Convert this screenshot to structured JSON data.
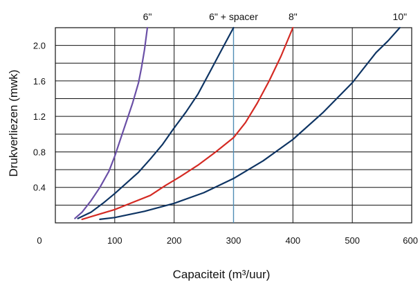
{
  "chart_data": {
    "type": "line",
    "title": "",
    "xlabel": "Capaciteit (m³/uur)",
    "ylabel": "Drukverliezen (mwk)",
    "xlim": [
      0,
      600
    ],
    "ylim": [
      0,
      2.2
    ],
    "x_ticks": [
      "0",
      "100",
      "200",
      "300",
      "400",
      "500",
      "600"
    ],
    "y_ticks": [
      "0.4",
      "0.8",
      "1.2",
      "1.6",
      "2.0"
    ],
    "grid": true,
    "series": [
      {
        "name": "6\"",
        "color": "#6a4fa6",
        "x": [
          33,
          45,
          60,
          75,
          90,
          100,
          110,
          120,
          130,
          140,
          145,
          150,
          155
        ],
        "y": [
          0.05,
          0.12,
          0.25,
          0.4,
          0.58,
          0.75,
          0.95,
          1.15,
          1.35,
          1.58,
          1.75,
          1.95,
          2.2
        ]
      },
      {
        "name": "6\" + spacer",
        "color": "#0e3463",
        "x": [
          38,
          60,
          80,
          100,
          120,
          140,
          160,
          180,
          200,
          220,
          240,
          260,
          280,
          300
        ],
        "y": [
          0.05,
          0.12,
          0.22,
          0.33,
          0.45,
          0.57,
          0.72,
          0.88,
          1.07,
          1.25,
          1.45,
          1.7,
          1.95,
          2.2
        ]
      },
      {
        "name": "8\"",
        "color": "#d42a23",
        "x": [
          45,
          75,
          100,
          130,
          160,
          185,
          210,
          240,
          270,
          300,
          320,
          340,
          360,
          380,
          400
        ],
        "y": [
          0.04,
          0.1,
          0.15,
          0.23,
          0.31,
          0.42,
          0.52,
          0.65,
          0.8,
          0.96,
          1.13,
          1.35,
          1.6,
          1.88,
          2.2
        ]
      },
      {
        "name": "10\"",
        "color": "#0e3463",
        "x": [
          75,
          100,
          150,
          200,
          250,
          300,
          350,
          400,
          450,
          500,
          540,
          560,
          580
        ],
        "y": [
          0.04,
          0.06,
          0.13,
          0.22,
          0.34,
          0.5,
          0.7,
          0.94,
          1.24,
          1.58,
          1.92,
          2.05,
          2.2
        ]
      }
    ],
    "vertical_marker": {
      "x": 300,
      "color": "#4f8cb5"
    }
  }
}
